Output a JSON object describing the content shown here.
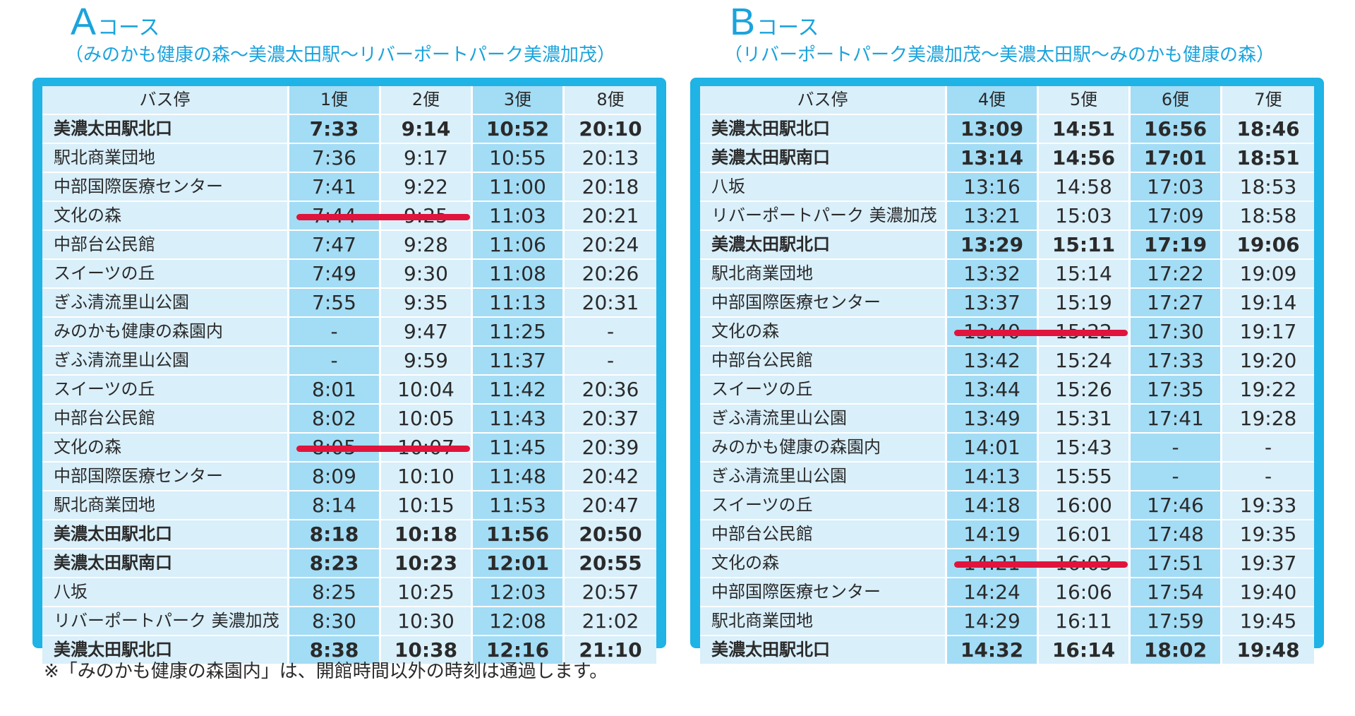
{
  "courseA": {
    "letter": "A",
    "word": "コース",
    "subtitle": "（みのかも健康の森～美濃太田駅～リバーポートパーク美濃加茂）",
    "headers": [
      "バス停",
      "1便",
      "2便",
      "3便",
      "8便"
    ],
    "rows": [
      {
        "stop": "美濃太田駅北口",
        "times": [
          "7:33",
          "9:14",
          "10:52",
          "20:10"
        ],
        "bold": true
      },
      {
        "stop": "駅北商業団地",
        "times": [
          "7:36",
          "9:17",
          "10:55",
          "20:13"
        ],
        "bold": false
      },
      {
        "stop": "中部国際医療センター",
        "times": [
          "7:41",
          "9:22",
          "11:00",
          "20:18"
        ],
        "bold": false
      },
      {
        "stop": "文化の森",
        "times": [
          "7:44",
          "9:25",
          "11:03",
          "20:21"
        ],
        "bold": false
      },
      {
        "stop": "中部台公民館",
        "times": [
          "7:47",
          "9:28",
          "11:06",
          "20:24"
        ],
        "bold": false
      },
      {
        "stop": "スイーツの丘",
        "times": [
          "7:49",
          "9:30",
          "11:08",
          "20:26"
        ],
        "bold": false
      },
      {
        "stop": "ぎふ清流里山公園",
        "times": [
          "7:55",
          "9:35",
          "11:13",
          "20:31"
        ],
        "bold": false
      },
      {
        "stop": "みのかも健康の森園内",
        "times": [
          "-",
          "9:47",
          "11:25",
          "-"
        ],
        "bold": false
      },
      {
        "stop": "ぎふ清流里山公園",
        "times": [
          "-",
          "9:59",
          "11:37",
          "-"
        ],
        "bold": false
      },
      {
        "stop": "スイーツの丘",
        "times": [
          "8:01",
          "10:04",
          "11:42",
          "20:36"
        ],
        "bold": false
      },
      {
        "stop": "中部台公民館",
        "times": [
          "8:02",
          "10:05",
          "11:43",
          "20:37"
        ],
        "bold": false
      },
      {
        "stop": "文化の森",
        "times": [
          "8:05",
          "10:07",
          "11:45",
          "20:39"
        ],
        "bold": false
      },
      {
        "stop": "中部国際医療センター",
        "times": [
          "8:09",
          "10:10",
          "11:48",
          "20:42"
        ],
        "bold": false
      },
      {
        "stop": "駅北商業団地",
        "times": [
          "8:14",
          "10:15",
          "11:53",
          "20:47"
        ],
        "bold": false
      },
      {
        "stop": "美濃太田駅北口",
        "times": [
          "8:18",
          "10:18",
          "11:56",
          "20:50"
        ],
        "bold": true
      },
      {
        "stop": "美濃太田駅南口",
        "times": [
          "8:23",
          "10:23",
          "12:01",
          "20:55"
        ],
        "bold": true
      },
      {
        "stop": "八坂",
        "times": [
          "8:25",
          "10:25",
          "12:03",
          "20:57"
        ],
        "bold": false
      },
      {
        "stop": "リバーポートパーク 美濃加茂",
        "times": [
          "8:30",
          "10:30",
          "12:08",
          "21:02"
        ],
        "bold": false
      },
      {
        "stop": "美濃太田駅北口",
        "times": [
          "8:38",
          "10:38",
          "12:16",
          "21:10"
        ],
        "bold": true
      }
    ],
    "strikes": [
      {
        "row": 3,
        "fromCol": 1,
        "toCol": 2
      },
      {
        "row": 11,
        "fromCol": 1,
        "toCol": 2
      }
    ]
  },
  "courseB": {
    "letter": "B",
    "word": "コース",
    "subtitle": "（リバーポートパーク美濃加茂～美濃太田駅～みのかも健康の森）",
    "headers": [
      "バス停",
      "4便",
      "5便",
      "6便",
      "7便"
    ],
    "rows": [
      {
        "stop": "美濃太田駅北口",
        "times": [
          "13:09",
          "14:51",
          "16:56",
          "18:46"
        ],
        "bold": true
      },
      {
        "stop": "美濃太田駅南口",
        "times": [
          "13:14",
          "14:56",
          "17:01",
          "18:51"
        ],
        "bold": true
      },
      {
        "stop": "八坂",
        "times": [
          "13:16",
          "14:58",
          "17:03",
          "18:53"
        ],
        "bold": false
      },
      {
        "stop": "リバーポートパーク 美濃加茂",
        "times": [
          "13:21",
          "15:03",
          "17:09",
          "18:58"
        ],
        "bold": false
      },
      {
        "stop": "美濃太田駅北口",
        "times": [
          "13:29",
          "15:11",
          "17:19",
          "19:06"
        ],
        "bold": true
      },
      {
        "stop": "駅北商業団地",
        "times": [
          "13:32",
          "15:14",
          "17:22",
          "19:09"
        ],
        "bold": false
      },
      {
        "stop": "中部国際医療センター",
        "times": [
          "13:37",
          "15:19",
          "17:27",
          "19:14"
        ],
        "bold": false
      },
      {
        "stop": "文化の森",
        "times": [
          "13:40",
          "15:22",
          "17:30",
          "19:17"
        ],
        "bold": false
      },
      {
        "stop": "中部台公民館",
        "times": [
          "13:42",
          "15:24",
          "17:33",
          "19:20"
        ],
        "bold": false
      },
      {
        "stop": "スイーツの丘",
        "times": [
          "13:44",
          "15:26",
          "17:35",
          "19:22"
        ],
        "bold": false
      },
      {
        "stop": "ぎふ清流里山公園",
        "times": [
          "13:49",
          "15:31",
          "17:41",
          "19:28"
        ],
        "bold": false
      },
      {
        "stop": "みのかも健康の森園内",
        "times": [
          "14:01",
          "15:43",
          "-",
          "-"
        ],
        "bold": false
      },
      {
        "stop": "ぎふ清流里山公園",
        "times": [
          "14:13",
          "15:55",
          "-",
          "-"
        ],
        "bold": false
      },
      {
        "stop": "スイーツの丘",
        "times": [
          "14:18",
          "16:00",
          "17:46",
          "19:33"
        ],
        "bold": false
      },
      {
        "stop": "中部台公民館",
        "times": [
          "14:19",
          "16:01",
          "17:48",
          "19:35"
        ],
        "bold": false
      },
      {
        "stop": "文化の森",
        "times": [
          "14:21",
          "16:03",
          "17:51",
          "19:37"
        ],
        "bold": false
      },
      {
        "stop": "中部国際医療センター",
        "times": [
          "14:24",
          "16:06",
          "17:54",
          "19:40"
        ],
        "bold": false
      },
      {
        "stop": "駅北商業団地",
        "times": [
          "14:29",
          "16:11",
          "17:59",
          "19:45"
        ],
        "bold": false
      },
      {
        "stop": "美濃太田駅北口",
        "times": [
          "14:32",
          "16:14",
          "18:02",
          "19:48"
        ],
        "bold": true
      }
    ],
    "strikes": [
      {
        "row": 7,
        "fromCol": 1,
        "toCol": 2
      },
      {
        "row": 15,
        "fromCol": 1,
        "toCol": 2
      }
    ]
  },
  "note": "※「みのかも健康の森園内」は、開館時間以外の時刻は通過します。",
  "colors": {
    "accent": "#1ba3dc",
    "frame": "#1fb3e6",
    "cellLight": "#d9effa",
    "cellDark": "#a3dcf5",
    "strike": "#e0143c"
  }
}
